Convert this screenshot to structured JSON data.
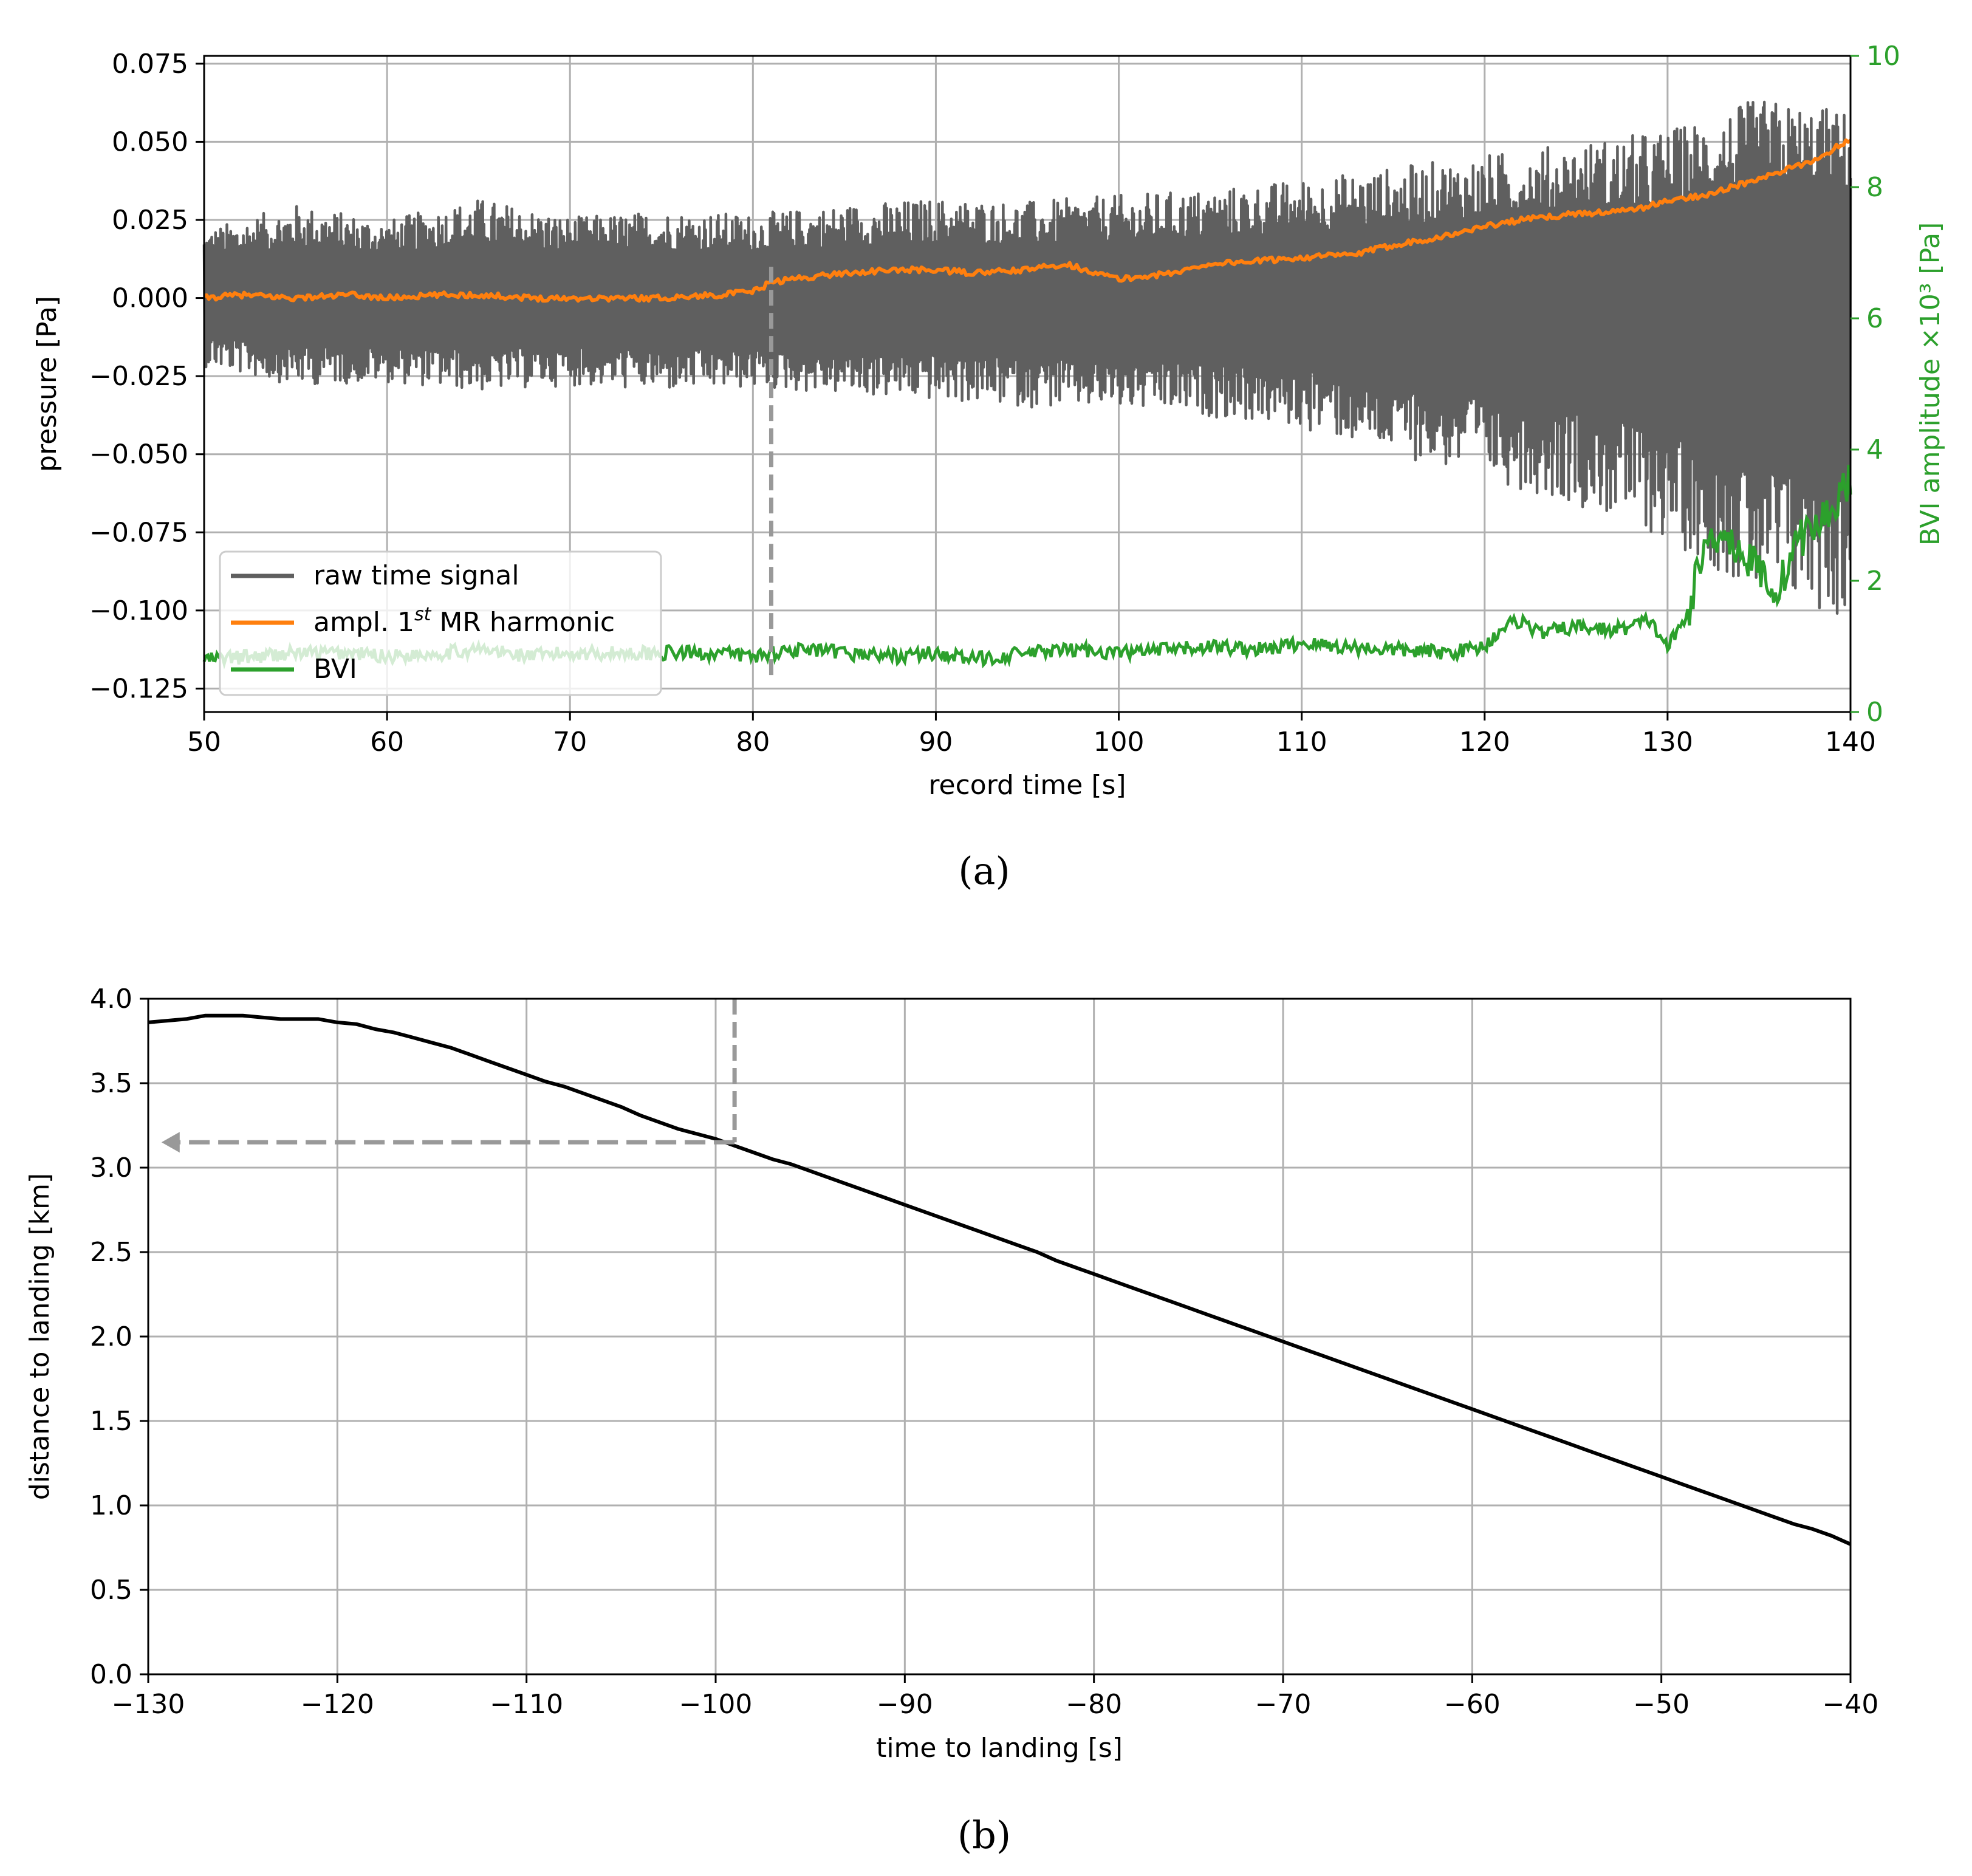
{
  "chart_data": [
    {
      "panel": "a",
      "caption": "(a)",
      "type": "line",
      "xlabel": "record time [s]",
      "ylabel": "pressure [Pa]",
      "ylabel_right": "BVI amplitude ×10³ [Pa]",
      "xlim": [
        50,
        140
      ],
      "ylim": [
        -0.1325,
        0.0775
      ],
      "ylim_right": [
        0,
        10
      ],
      "xticks": [
        50,
        60,
        70,
        80,
        90,
        100,
        110,
        120,
        130,
        140
      ],
      "xtick_labels": [
        "50",
        "60",
        "70",
        "80",
        "90",
        "100",
        "110",
        "120",
        "130",
        "140"
      ],
      "yticks": [
        0.075,
        0.05,
        0.025,
        0.0,
        -0.025,
        -0.05,
        -0.075,
        -0.1,
        -0.125
      ],
      "ytick_labels": [
        "0.075",
        "0.050",
        "0.025",
        "0.000",
        "−0.025",
        "−0.050",
        "−0.075",
        "−0.100",
        "−0.125"
      ],
      "yticks_right": [
        0,
        2,
        4,
        6,
        8,
        10
      ],
      "ytick_labels_right": [
        "0",
        "2",
        "4",
        "6",
        "8",
        "10"
      ],
      "grid": true,
      "legend_position": "lower-left",
      "legend": [
        "raw time signal",
        "ampl. 1st MR harmonic",
        "BVI"
      ],
      "marker_line": {
        "x": 81,
        "y_top": 0.01,
        "y_bottom": -0.123
      },
      "series": [
        {
          "name": "raw time signal",
          "color": "#5f5f5f",
          "axis": "left",
          "note": "dense oscillating signal; envelope given as upper/lower bounds",
          "x": [
            50,
            55,
            60,
            65,
            70,
            75,
            80,
            85,
            90,
            95,
            100,
            105,
            110,
            115,
            120,
            125,
            130,
            133,
            135,
            138,
            140
          ],
          "upper": [
            0.022,
            0.03,
            0.025,
            0.032,
            0.026,
            0.028,
            0.027,
            0.03,
            0.032,
            0.031,
            0.033,
            0.035,
            0.038,
            0.042,
            0.046,
            0.05,
            0.054,
            0.06,
            0.064,
            0.062,
            0.06
          ],
          "lower": [
            -0.022,
            -0.028,
            -0.027,
            -0.03,
            -0.028,
            -0.03,
            -0.029,
            -0.031,
            -0.033,
            -0.035,
            -0.036,
            -0.038,
            -0.042,
            -0.05,
            -0.058,
            -0.066,
            -0.078,
            -0.088,
            -0.098,
            -0.1,
            -0.105
          ]
        },
        {
          "name": "ampl. 1st MR harmonic",
          "color": "#ff7f0e",
          "axis": "left",
          "x": [
            50,
            52,
            55,
            58,
            60,
            63,
            65,
            68,
            70,
            73,
            75,
            78,
            80,
            81,
            82,
            85,
            88,
            90,
            92,
            95,
            97,
            100,
            103,
            105,
            108,
            110,
            113,
            115,
            118,
            120,
            122,
            125,
            128,
            130,
            132,
            135,
            138,
            140
          ],
          "values": [
            0.0,
            0.001,
            0.0,
            0.001,
            0.0,
            0.001,
            0.001,
            0.0,
            0.0,
            0.0,
            0.0,
            0.001,
            0.002,
            0.005,
            0.006,
            0.008,
            0.009,
            0.009,
            0.008,
            0.009,
            0.011,
            0.006,
            0.008,
            0.011,
            0.012,
            0.013,
            0.014,
            0.017,
            0.02,
            0.023,
            0.025,
            0.027,
            0.028,
            0.031,
            0.033,
            0.038,
            0.044,
            0.051
          ]
        },
        {
          "name": "BVI",
          "color": "#2ca02c",
          "axis": "right",
          "x": [
            50,
            53,
            55,
            58,
            60,
            63,
            65,
            68,
            70,
            73,
            75,
            78,
            80,
            82,
            85,
            88,
            90,
            92,
            95,
            98,
            100,
            103,
            105,
            108,
            110,
            112,
            115,
            118,
            120,
            121,
            122,
            123,
            125,
            127,
            128,
            129,
            130,
            131,
            132,
            133,
            134,
            135,
            136,
            137,
            138,
            139,
            140
          ],
          "values": [
            0.8,
            0.85,
            0.9,
            0.9,
            0.85,
            0.9,
            0.95,
            0.85,
            0.9,
            0.9,
            0.9,
            0.9,
            0.85,
            0.95,
            0.9,
            0.85,
            0.9,
            0.8,
            0.9,
            0.95,
            0.9,
            0.95,
            1.0,
            0.95,
            1.05,
            1.0,
            0.95,
            0.9,
            1.0,
            1.3,
            1.4,
            1.2,
            1.3,
            1.25,
            1.3,
            1.4,
            1.0,
            1.4,
            2.5,
            2.8,
            2.4,
            2.2,
            1.8,
            2.6,
            2.8,
            3.1,
            3.6
          ]
        }
      ]
    },
    {
      "panel": "b",
      "caption": "(b)",
      "type": "line",
      "xlabel": "time to landing [s]",
      "ylabel": "distance to landing [km]",
      "xlim": [
        -130,
        -40
      ],
      "ylim": [
        0,
        4
      ],
      "xticks": [
        -130,
        -120,
        -110,
        -100,
        -90,
        -80,
        -70,
        -60,
        -50,
        -40
      ],
      "xtick_labels": [
        "−130",
        "−120",
        "−110",
        "−100",
        "−90",
        "−80",
        "−70",
        "−60",
        "−50",
        "−40"
      ],
      "yticks": [
        0.0,
        0.5,
        1.0,
        1.5,
        2.0,
        2.5,
        3.0,
        3.5,
        4.0
      ],
      "ytick_labels": [
        "0.0",
        "0.5",
        "1.0",
        "1.5",
        "2.0",
        "2.5",
        "3.0",
        "3.5",
        "4.0"
      ],
      "grid": true,
      "marker_line": {
        "x": -99,
        "y_top": 4.0,
        "y_bottom": 3.15
      },
      "marker_arrow": {
        "y": 3.15,
        "x_from": -99,
        "x_to": -129.3
      },
      "series": [
        {
          "color": "#000000",
          "x": [
            -130,
            -128,
            -127,
            -126,
            -125,
            -124,
            -123,
            -122,
            -121,
            -120,
            -119,
            -118,
            -117,
            -116,
            -115,
            -114,
            -113,
            -112,
            -111,
            -110,
            -109,
            -108,
            -107,
            -106,
            -105,
            -104,
            -103,
            -102,
            -101,
            -100,
            -99,
            -98,
            -97,
            -96,
            -95,
            -94,
            -93,
            -92,
            -91,
            -90,
            -89,
            -88,
            -87,
            -86,
            -85,
            -84,
            -83,
            -82,
            -81,
            -80,
            -79,
            -78,
            -77,
            -76,
            -75,
            -74,
            -73,
            -72,
            -71,
            -70,
            -69,
            -68,
            -67,
            -66,
            -65,
            -64,
            -63,
            -62,
            -61,
            -60,
            -59,
            -58,
            -57,
            -56,
            -55,
            -54,
            -53,
            -52,
            -51,
            -50,
            -49,
            -48,
            -47,
            -46,
            -45,
            -44,
            -43,
            -42,
            -41,
            -40
          ],
          "values": [
            3.86,
            3.88,
            3.9,
            3.9,
            3.9,
            3.89,
            3.88,
            3.88,
            3.88,
            3.86,
            3.85,
            3.82,
            3.8,
            3.77,
            3.74,
            3.71,
            3.67,
            3.63,
            3.59,
            3.55,
            3.51,
            3.48,
            3.44,
            3.4,
            3.36,
            3.31,
            3.27,
            3.23,
            3.2,
            3.17,
            3.13,
            3.09,
            3.05,
            3.02,
            2.98,
            2.94,
            2.9,
            2.86,
            2.82,
            2.78,
            2.74,
            2.7,
            2.66,
            2.62,
            2.58,
            2.54,
            2.5,
            2.45,
            2.41,
            2.37,
            2.33,
            2.29,
            2.25,
            2.21,
            2.17,
            2.13,
            2.09,
            2.05,
            2.01,
            1.97,
            1.93,
            1.89,
            1.85,
            1.81,
            1.77,
            1.73,
            1.69,
            1.65,
            1.61,
            1.57,
            1.53,
            1.49,
            1.45,
            1.41,
            1.37,
            1.33,
            1.29,
            1.25,
            1.21,
            1.17,
            1.13,
            1.09,
            1.05,
            1.01,
            0.97,
            0.93,
            0.89,
            0.86,
            0.82,
            0.77
          ]
        }
      ]
    }
  ]
}
